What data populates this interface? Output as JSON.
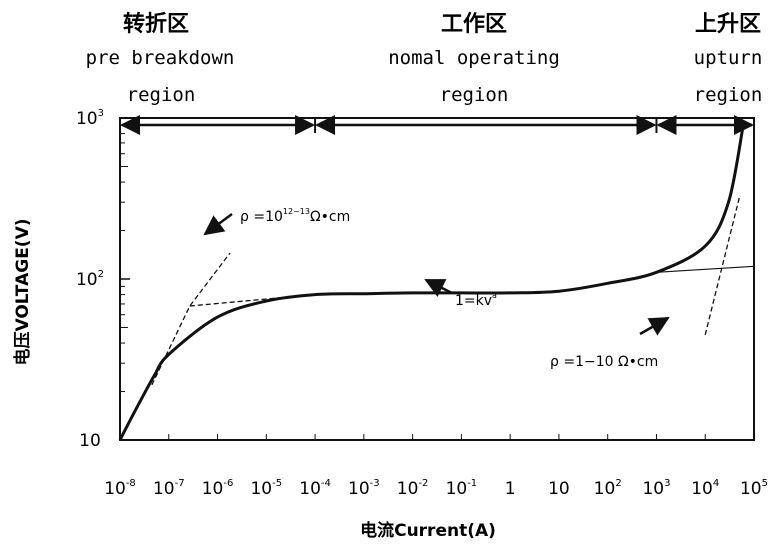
{
  "chart_data": {
    "type": "line",
    "xlabel": "电流Current(A)",
    "ylabel": "电压VOLTAGE(V)",
    "xscale": "log",
    "yscale": "log",
    "xlim": [
      1e-08,
      100000.0
    ],
    "ylim": [
      10,
      1000
    ],
    "x_ticks": [
      {
        "base": "10",
        "exp": "-8",
        "value": 1e-08
      },
      {
        "base": "10",
        "exp": "-7",
        "value": 1e-07
      },
      {
        "base": "10",
        "exp": "-6",
        "value": 1e-06
      },
      {
        "base": "10",
        "exp": "-5",
        "value": 1e-05
      },
      {
        "base": "10",
        "exp": "-4",
        "value": 0.0001
      },
      {
        "base": "10",
        "exp": "-3",
        "value": 0.001
      },
      {
        "base": "10",
        "exp": "-2",
        "value": 0.01
      },
      {
        "base": "10",
        "exp": "-1",
        "value": 0.1
      },
      {
        "base": "1",
        "exp": "",
        "value": 1
      },
      {
        "base": "10",
        "exp": "",
        "value": 10
      },
      {
        "base": "10",
        "exp": "2",
        "value": 100
      },
      {
        "base": "10",
        "exp": "3",
        "value": 1000
      },
      {
        "base": "10",
        "exp": "4",
        "value": 10000
      },
      {
        "base": "10",
        "exp": "5",
        "value": 100000
      }
    ],
    "y_ticks": [
      {
        "base": "10",
        "exp": "3",
        "value": 1000
      },
      {
        "base": "10",
        "exp": "2",
        "value": 100
      },
      {
        "base": "10",
        "exp": "",
        "value": 10
      }
    ],
    "regions": [
      {
        "cn": "转折区",
        "en1": "pre  breakdown",
        "en2": "region",
        "x_from": 1e-08,
        "x_to": 0.0001
      },
      {
        "cn": "工作区",
        "en1": "nomal operating",
        "en2": "region",
        "x_from": 0.0001,
        "x_to": 1000
      },
      {
        "cn": "上升区",
        "en1": "upturn",
        "en2": "region",
        "x_from": 1000,
        "x_to": 100000
      }
    ],
    "series": [
      {
        "style": "solid",
        "x": [
          1e-08,
          2e-08,
          5e-08,
          1e-07,
          1e-06,
          1e-05,
          0.0001,
          0.001,
          0.01,
          0.1,
          1,
          10,
          100,
          1000,
          10000,
          30000,
          60000
        ],
        "y": [
          10,
          15,
          25,
          34,
          58,
          73,
          80,
          81,
          82,
          82,
          82,
          84,
          94,
          110,
          160,
          300,
          900
        ]
      },
      {
        "style": "dashed",
        "x": [
          4.5e-08,
          2.7e-07,
          1.8e-06
        ],
        "y": [
          22,
          68,
          145
        ]
      },
      {
        "style": "dashed",
        "x": [
          2.7e-07,
          0.0001
        ],
        "y": [
          68,
          80
        ]
      },
      {
        "style": "thin-solid",
        "x": [
          1000,
          100000
        ],
        "y": [
          110,
          120
        ]
      },
      {
        "style": "dashed",
        "x": [
          10000.0,
          50000.0
        ],
        "y": [
          45,
          320
        ]
      }
    ],
    "annotations": [
      {
        "text": "ρ =10",
        "sup": "12~13",
        "after": "Ω•cm",
        "x": 1.8e-06,
        "y": 145
      },
      {
        "text": "1=kv",
        "sup": "a",
        "after": "",
        "x": 0.04,
        "y": 62
      },
      {
        "text": "ρ =1−10 Ω•cm",
        "sup": "",
        "after": "",
        "x": 1000,
        "y": 31
      }
    ]
  }
}
